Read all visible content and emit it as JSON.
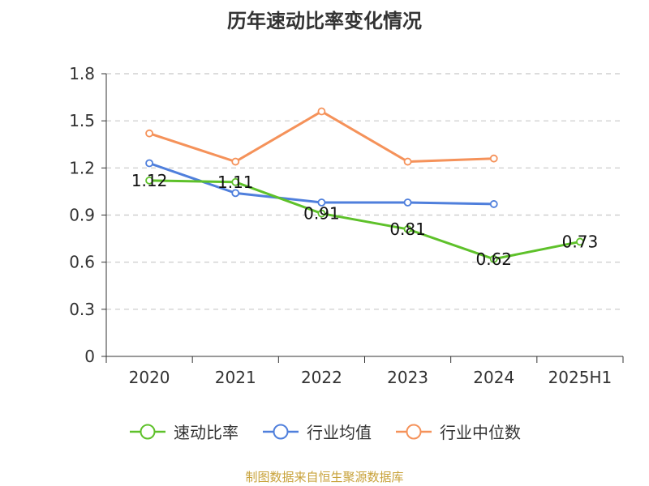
{
  "chart_data": {
    "type": "line",
    "title": "历年速动比率变化情况",
    "categories": [
      "2020",
      "2021",
      "2022",
      "2023",
      "2024",
      "2025H1"
    ],
    "y_ticks": [
      "0",
      "0.3",
      "0.6",
      "0.9",
      "1.2",
      "1.5",
      "1.8"
    ],
    "ylim": [
      0,
      1.8
    ],
    "grid": true,
    "legend_position": "bottom",
    "series": [
      {
        "name": "速动比率",
        "color": "#5ec12a",
        "values": [
          1.12,
          1.11,
          0.91,
          0.81,
          0.62,
          0.73
        ],
        "labels": [
          "1.12",
          "1.11",
          "0.91",
          "0.81",
          "0.62",
          "0.73"
        ]
      },
      {
        "name": "行业均值",
        "color": "#4f7fdc",
        "values": [
          1.23,
          1.04,
          0.98,
          0.98,
          0.97,
          null
        ]
      },
      {
        "name": "行业中位数",
        "color": "#f5925a",
        "values": [
          1.42,
          1.24,
          1.56,
          1.24,
          1.26,
          null
        ]
      }
    ]
  },
  "source_note": "制图数据来自恒生聚源数据库"
}
